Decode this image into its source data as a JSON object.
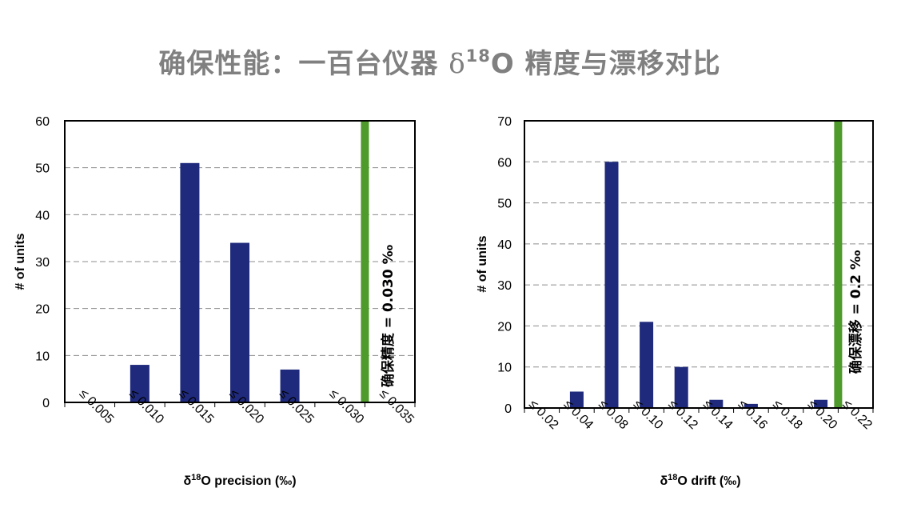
{
  "page": {
    "title_prefix": "确保性能：一百台仪器 ",
    "title_delta": "δ",
    "title_sup": "18",
    "title_suffix": "O 精度与漂移对比"
  },
  "chart_data": [
    {
      "type": "bar",
      "title": "",
      "xlabel_delta": "δ",
      "xlabel_sup": "18",
      "xlabel_rest": "O precision (‰)",
      "ylabel": "# of units",
      "categories": [
        "≤ 0.005",
        "≤ 0.010",
        "≤ 0.015",
        "≤ 0.020",
        "≤ 0.025",
        "≤ 0.030",
        "≤ 0.035"
      ],
      "values": [
        0,
        8,
        51,
        34,
        7,
        0,
        0
      ],
      "yticks": [
        0,
        10,
        20,
        30,
        40,
        50,
        60
      ],
      "ylim": [
        0,
        60
      ],
      "grid": true,
      "bar_color": "#1f2a7c",
      "threshold": {
        "label": "确保精度 = 0.030 ‰",
        "category_index": 5,
        "color": "#4e9a2a"
      }
    },
    {
      "type": "bar",
      "title": "",
      "xlabel_delta": "δ",
      "xlabel_sup": "18",
      "xlabel_rest": "O drift (‰)",
      "ylabel": "# of units",
      "categories": [
        "≤ 0.02",
        "≤ 0.04",
        "≤ 0.08",
        "≤ 0.10",
        "≤ 0.12",
        "≤ 0.14",
        "≤ 0.16",
        "≤ 0.18",
        "≤ 0.20",
        "≤ 0.22"
      ],
      "values": [
        0,
        4,
        60,
        21,
        10,
        2,
        1,
        0,
        2,
        0
      ],
      "yticks": [
        0,
        10,
        20,
        30,
        40,
        50,
        60,
        70
      ],
      "ylim": [
        0,
        70
      ],
      "grid": true,
      "bar_color": "#1f2a7c",
      "threshold": {
        "label": "确保漂移 = 0.2 ‰",
        "category_index": 8,
        "color": "#4e9a2a"
      }
    }
  ]
}
